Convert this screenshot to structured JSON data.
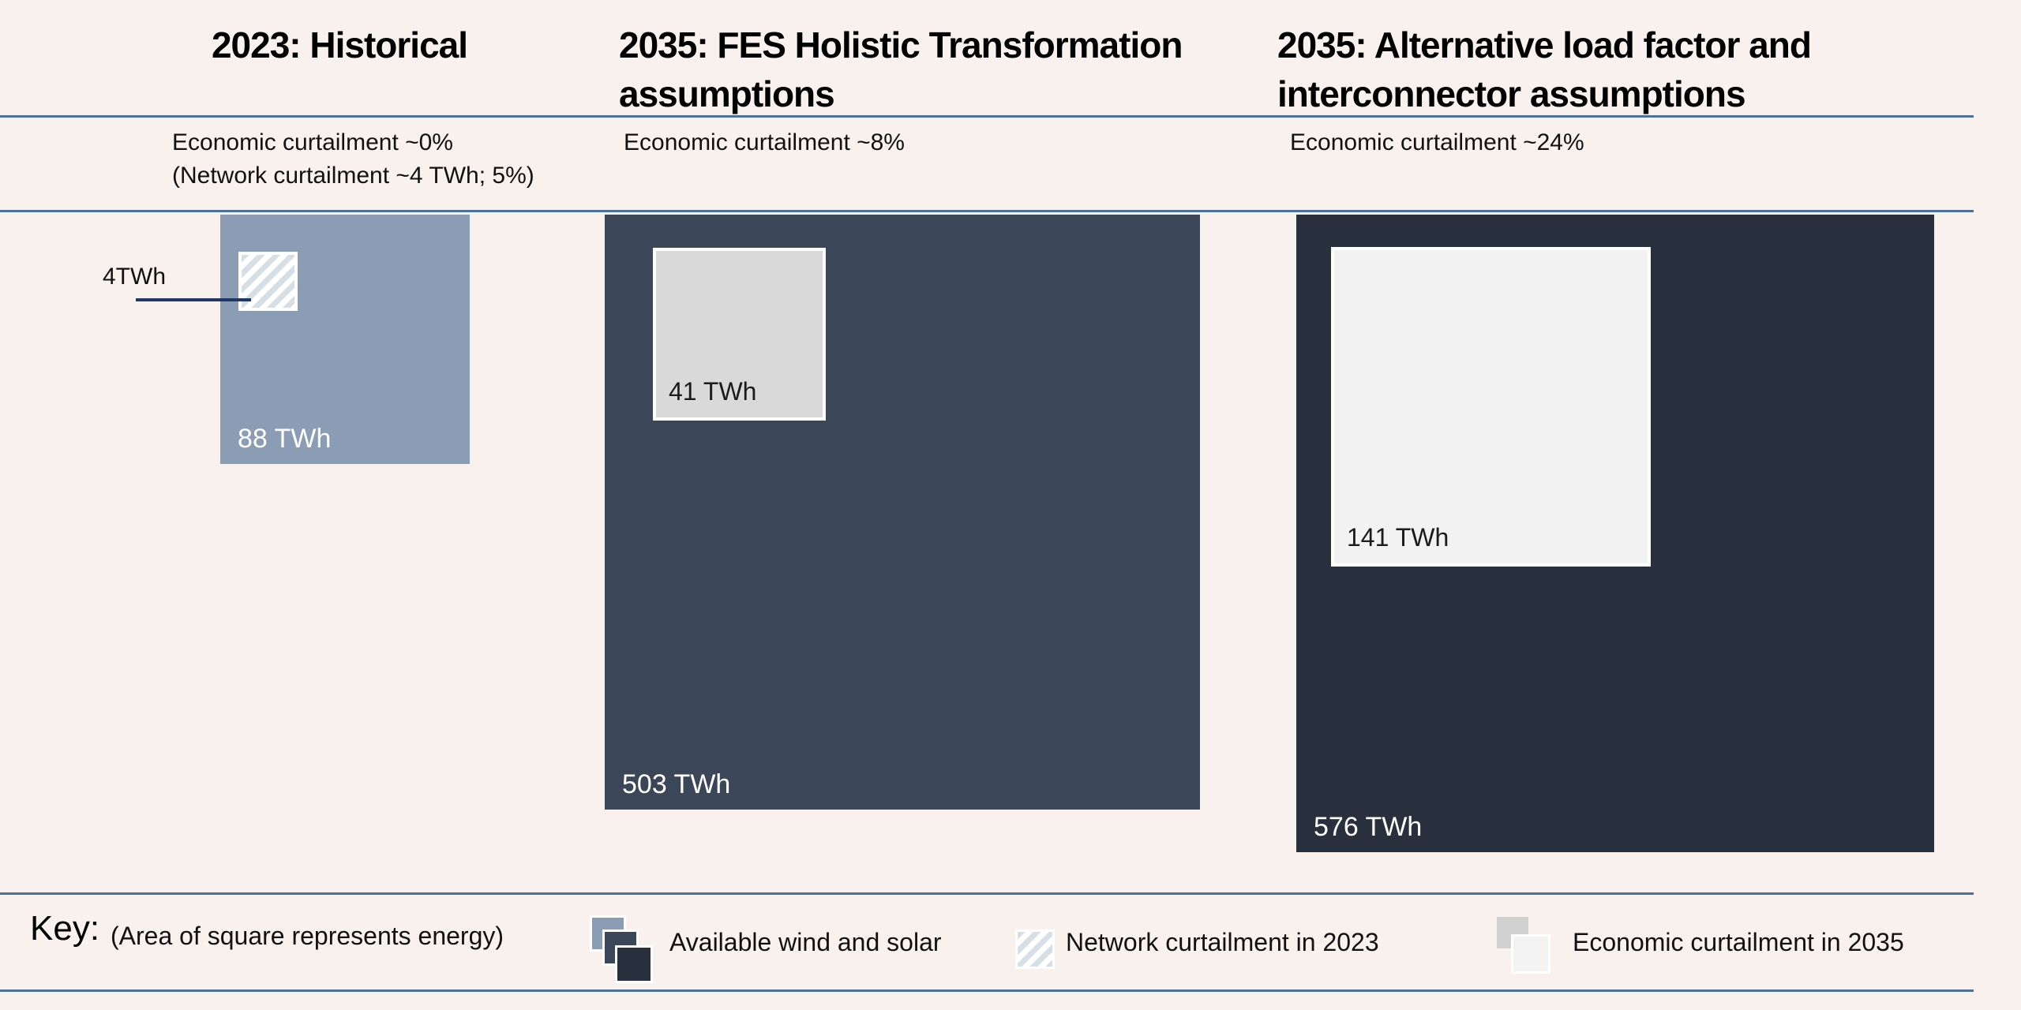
{
  "header": {
    "columns": [
      {
        "title_lines": [
          "2023: Historical"
        ],
        "subtitle_lines": [
          "Economic curtailment ~0%",
          "(Network curtailment ~4 TWh; 5%)"
        ]
      },
      {
        "title_lines": [
          "2035: FES Holistic Transformation",
          "assumptions"
        ],
        "subtitle_lines": [
          "Economic curtailment ~8%"
        ]
      },
      {
        "title_lines": [
          "2035: Alternative load factor and",
          "interconnector assumptions"
        ],
        "subtitle_lines": [
          "Economic curtailment ~24%"
        ]
      }
    ]
  },
  "panels": [
    {
      "main_label": "88 TWh",
      "callout_label": "4TWh"
    },
    {
      "main_label": "503 TWh",
      "inner_label": "41 TWh"
    },
    {
      "main_label": "576 TWh",
      "inner_label": "141 TWh"
    }
  ],
  "key": {
    "label": "Key:",
    "note": "(Area of square represents energy)",
    "items": [
      {
        "label": "Available wind and solar"
      },
      {
        "label": "Network curtailment in 2023"
      },
      {
        "label": "Economic curtailment in 2035"
      }
    ]
  },
  "colors": {
    "background": "#F9F1EE",
    "rule": "#4E719C",
    "available_2023": "#8B9DB5",
    "available_2035_fes": "#3B4758",
    "available_2035_alt": "#27303C",
    "economic_curtailment_fes": "#D9D9D9",
    "economic_curtailment_alt": "#F2F2F2",
    "hatch_stripe": "#D6DEE6",
    "callout_line": "#1F3864",
    "label_on_dark": "#FFFFFF"
  },
  "chart_data": {
    "type": "area",
    "variant": "proportional-area-squares",
    "note": "Area of square represents energy",
    "unit": "TWh",
    "panels": [
      {
        "title": "2023: Historical",
        "economic_curtailment_pct": 0,
        "network_curtailment_twh": 4,
        "network_curtailment_pct": 5,
        "available_wind_and_solar_twh": 88
      },
      {
        "title": "2035: FES Holistic Transformation assumptions",
        "economic_curtailment_pct": 8,
        "economic_curtailment_twh": 41,
        "available_wind_and_solar_twh": 503
      },
      {
        "title": "2035: Alternative load factor and interconnector assumptions",
        "economic_curtailment_pct": 24,
        "economic_curtailment_twh": 141,
        "available_wind_and_solar_twh": 576
      }
    ],
    "legend": [
      "Available wind and solar",
      "Network curtailment in 2023",
      "Economic curtailment in 2035"
    ],
    "legend_position": "bottom"
  }
}
